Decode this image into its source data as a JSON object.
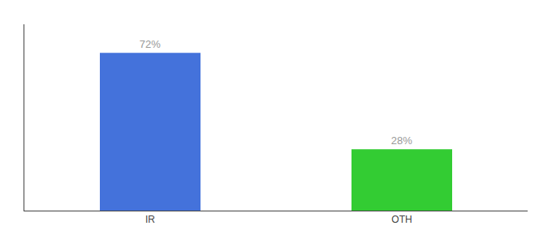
{
  "chart_data": {
    "type": "bar",
    "categories": [
      "IR",
      "OTH"
    ],
    "values": [
      72,
      28
    ],
    "colors": [
      "#4472db",
      "#33cc33"
    ],
    "data_labels": true,
    "value_labels": [
      "72%",
      "28%"
    ],
    "ylim": [
      0,
      85
    ],
    "grid": false,
    "tick_labels": "x"
  }
}
